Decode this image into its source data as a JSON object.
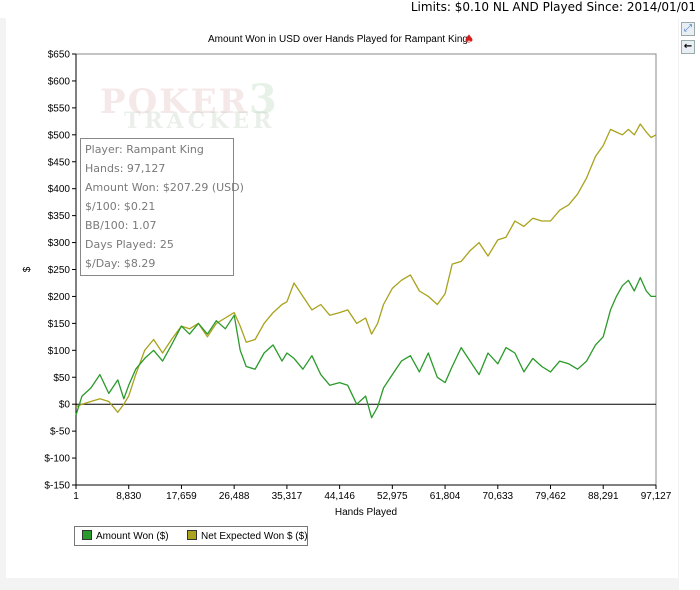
{
  "header": {
    "limits_text": "Limits: $0.10 NL AND Played Since: 2014/01/01"
  },
  "colors": {
    "amount_won": "#2a9a2a",
    "net_expected": "#a9a21c",
    "zero_line": "#000000",
    "axis": "#000000",
    "plot_background": "#ffffff",
    "panel_background": "#f3f3f3"
  },
  "icons": {
    "zoom": "zoom-icon",
    "back": "back-arrow-icon",
    "title_logo": "red-spade-icon"
  },
  "watermark": {
    "line1": "POKER",
    "line2": "TRACKER",
    "badge": "3"
  },
  "stats": [
    "Player: Rampant King",
    "Hands: 97,127",
    "Amount Won: $207.29 (USD)",
    "$/100: $0.21",
    "BB/100: 1.07",
    "Days Played: 25",
    "$/Day: $8.29"
  ],
  "chart_data": {
    "type": "line",
    "title": "Amount Won in USD over Hands Played for Rampant King",
    "xlabel": "Hands Played",
    "ylabel": "$",
    "xlim": [
      1,
      97127
    ],
    "ylim": [
      -150,
      650
    ],
    "x_ticks": [
      1,
      8830,
      17659,
      26488,
      35317,
      44146,
      52975,
      61804,
      70633,
      79462,
      88291,
      97127
    ],
    "x_tick_labels": [
      "1",
      "8,830",
      "17,659",
      "26,488",
      "35,317",
      "44,146",
      "52,975",
      "61,804",
      "70,633",
      "79,462",
      "88,291",
      "97,127"
    ],
    "y_ticks": [
      -150,
      -100,
      -50,
      0,
      50,
      100,
      150,
      200,
      250,
      300,
      350,
      400,
      450,
      500,
      550,
      600,
      650
    ],
    "y_tick_labels": [
      "$-150",
      "$-100",
      "$-50",
      "$0",
      "$50",
      "$100",
      "$150",
      "$200",
      "$250",
      "$300",
      "$350",
      "$400",
      "$450",
      "$500",
      "$550",
      "$600",
      "$650"
    ],
    "grid": false,
    "legend": "bottom-left",
    "series": [
      {
        "name": "Amount Won ($)",
        "color": "#2a9a2a",
        "x": [
          1,
          1000,
          2500,
          4000,
          5500,
          7000,
          8000,
          8830,
          10000,
          11500,
          13000,
          14500,
          16000,
          17659,
          19000,
          20500,
          22000,
          23500,
          25000,
          26488,
          27500,
          28500,
          30000,
          31500,
          33000,
          34500,
          35317,
          36500,
          38000,
          39500,
          41000,
          42500,
          44146,
          45500,
          47000,
          48500,
          49500,
          50500,
          51500,
          52975,
          54500,
          56000,
          57500,
          59000,
          60500,
          61804,
          63000,
          64500,
          66000,
          67500,
          69000,
          70633,
          72000,
          73500,
          75000,
          76500,
          78000,
          79462,
          81000,
          82500,
          84000,
          85500,
          87000,
          88291,
          89500,
          90500,
          91500,
          92500,
          93500,
          94500,
          95500,
          96300,
          97127
        ],
        "y": [
          -20,
          15,
          30,
          55,
          20,
          45,
          10,
          35,
          65,
          85,
          100,
          80,
          110,
          145,
          130,
          150,
          130,
          155,
          140,
          165,
          100,
          70,
          65,
          95,
          110,
          80,
          95,
          85,
          65,
          90,
          55,
          35,
          40,
          35,
          0,
          15,
          -25,
          -5,
          30,
          55,
          80,
          90,
          60,
          95,
          50,
          40,
          70,
          105,
          80,
          55,
          95,
          75,
          105,
          95,
          60,
          85,
          70,
          60,
          80,
          75,
          65,
          80,
          110,
          125,
          175,
          200,
          220,
          230,
          210,
          235,
          210,
          200,
          200
        ]
      },
      {
        "name": "Net Expected Won $ ($)",
        "color": "#a9a21c",
        "x": [
          1,
          1000,
          2500,
          4000,
          5500,
          7000,
          8000,
          8830,
          10000,
          11500,
          13000,
          14500,
          16000,
          17659,
          19000,
          20500,
          22000,
          23500,
          25000,
          26488,
          27500,
          28500,
          30000,
          31500,
          33000,
          34500,
          35317,
          36500,
          38000,
          39500,
          41000,
          42500,
          44146,
          45500,
          47000,
          48500,
          49500,
          50500,
          51500,
          52975,
          54500,
          56000,
          57500,
          59000,
          60500,
          61804,
          63000,
          64500,
          66000,
          67500,
          69000,
          70633,
          72000,
          73500,
          75000,
          76500,
          78000,
          79462,
          81000,
          82500,
          84000,
          85500,
          87000,
          88291,
          89500,
          90500,
          91500,
          92500,
          93500,
          94500,
          95500,
          96300,
          97127
        ],
        "y": [
          -5,
          0,
          5,
          10,
          5,
          -15,
          0,
          15,
          55,
          100,
          120,
          95,
          120,
          145,
          140,
          150,
          125,
          150,
          160,
          170,
          145,
          115,
          120,
          150,
          170,
          185,
          190,
          225,
          200,
          175,
          185,
          165,
          170,
          175,
          150,
          160,
          130,
          150,
          185,
          215,
          230,
          240,
          210,
          200,
          185,
          205,
          260,
          265,
          285,
          300,
          275,
          305,
          310,
          340,
          330,
          345,
          340,
          340,
          360,
          370,
          390,
          420,
          460,
          480,
          510,
          505,
          500,
          510,
          500,
          520,
          505,
          495,
          500
        ]
      }
    ]
  }
}
